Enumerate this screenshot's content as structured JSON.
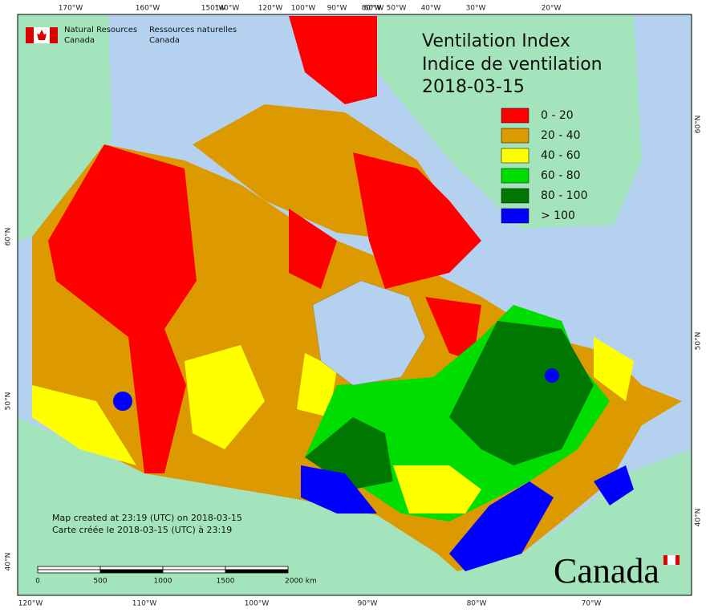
{
  "header": {
    "department_en": [
      "Natural Resources",
      "Canada"
    ],
    "department_fr": [
      "Ressources naturelles",
      "Canada"
    ]
  },
  "title": [
    "Ventilation Index",
    "Indice de ventilation",
    "2018-03-15"
  ],
  "legend": [
    {
      "label": "0 - 20",
      "color": "#ff0000"
    },
    {
      "label": "20 - 40",
      "color": "#dd9900"
    },
    {
      "label": "40 - 60",
      "color": "#ffff00"
    },
    {
      "label": "60 - 80",
      "color": "#00dd00"
    },
    {
      "label": "80 - 100",
      "color": "#007700"
    },
    {
      "label": "> 100",
      "color": "#0000ff"
    }
  ],
  "graticule": {
    "top": [
      "170°W",
      "160°W",
      "150°W",
      "140°W",
      "120°W",
      "100°W",
      "90°W",
      "80°W",
      "60°W",
      "50°W",
      "40°W",
      "30°W",
      "20°W"
    ],
    "bottom": [
      "120°W",
      "110°W",
      "100°W",
      "90°W",
      "80°W",
      "70°W"
    ],
    "left": [
      "60°N",
      "50°N",
      "40°N"
    ],
    "right": [
      "60°N",
      "50°N",
      "40°N"
    ]
  },
  "footer": [
    "Map created at 23:19 (UTC) on 2018-03-15",
    "Carte créée le 2018-03-15 (UTC) à 23:19"
  ],
  "scale_bar": [
    "0",
    "500",
    "1000",
    "1500",
    "2000 km"
  ],
  "wordmark": "Canada"
}
